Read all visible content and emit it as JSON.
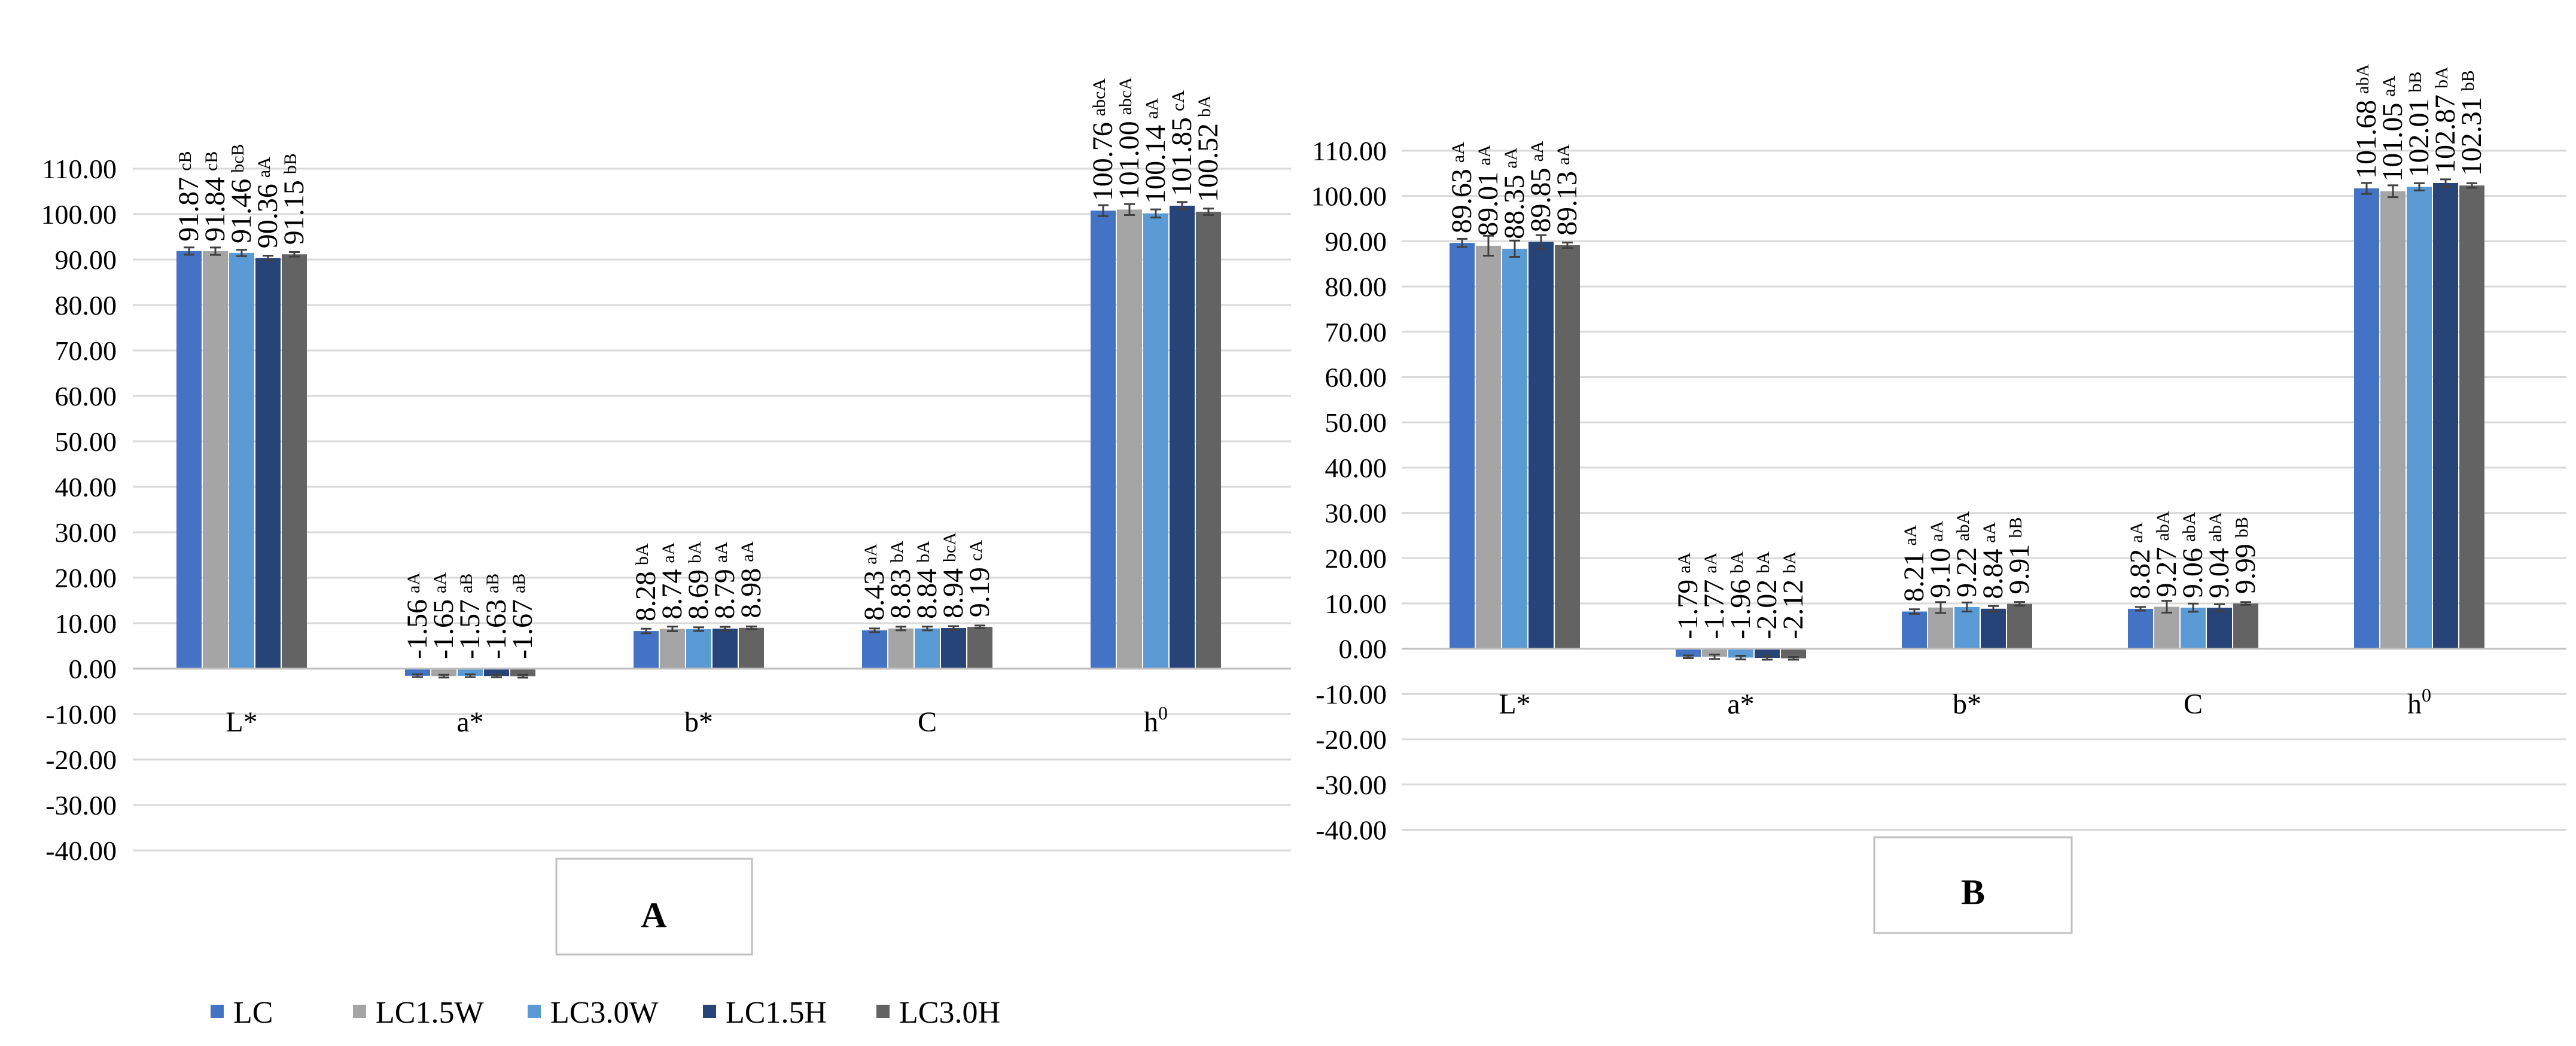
{
  "colors": {
    "LC": "#4472c4",
    "LC1.5W": "#a5a5a5",
    "LC3.0W": "#5b9bd5",
    "LC1.5H": "#264478",
    "LC3.0H": "#636363",
    "grid": "#d9d9d9",
    "axis": "#bfbfbf",
    "text": "#000000"
  },
  "legend": {
    "position": "bottom-left",
    "items": [
      "LC",
      "LC1.5W",
      "LC3.0W",
      "LC1.5H",
      "LC3.0H"
    ]
  },
  "chart_data": [
    {
      "type": "bar",
      "panel_label": "A",
      "categories": [
        "L*",
        "a*",
        "b*",
        "C",
        "h0"
      ],
      "category_display": [
        {
          "main": "L*",
          "sup": ""
        },
        {
          "main": "a*",
          "sup": ""
        },
        {
          "main": "b*",
          "sup": ""
        },
        {
          "main": "C",
          "sup": ""
        },
        {
          "main": "h",
          "sup": "0"
        }
      ],
      "ylim": [
        -40,
        110
      ],
      "yticks": [
        -40,
        -30,
        -20,
        -10,
        0,
        10,
        20,
        30,
        40,
        50,
        60,
        70,
        80,
        90,
        100,
        110
      ],
      "ytick_labels": [
        "-40.00",
        "-30.00",
        "-20.00",
        "-10.00",
        "0.00",
        "10.00",
        "20.00",
        "30.00",
        "40.00",
        "50.00",
        "60.00",
        "70.00",
        "80.00",
        "90.00",
        "100.00",
        "110.00"
      ],
      "grid": true,
      "error_bars": true,
      "series": [
        {
          "name": "LC",
          "values": [
            91.87,
            -1.56,
            8.28,
            8.43,
            100.76
          ],
          "labels": [
            "91.87",
            "-1.56",
            "8.28",
            "8.43",
            "100.76"
          ],
          "letters": [
            "cB",
            "aA",
            "bA",
            "aA",
            "abcA"
          ],
          "errors": [
            0.8,
            0.3,
            0.5,
            0.4,
            1.2
          ]
        },
        {
          "name": "LC1.5W",
          "values": [
            91.84,
            -1.65,
            8.74,
            8.83,
            101.0
          ],
          "labels": [
            "91.84",
            "-1.65",
            "8.74",
            "8.83",
            "101.00"
          ],
          "letters": [
            "cB",
            "aA",
            "aA",
            "bA",
            "abcA"
          ],
          "errors": [
            0.8,
            0.3,
            0.5,
            0.4,
            1.2
          ]
        },
        {
          "name": "LC3.0W",
          "values": [
            91.46,
            -1.57,
            8.69,
            8.84,
            100.14
          ],
          "labels": [
            "91.46",
            "-1.57",
            "8.69",
            "8.84",
            "100.14"
          ],
          "letters": [
            "bcB",
            "aB",
            "bA",
            "bA",
            "aA"
          ],
          "errors": [
            0.7,
            0.3,
            0.4,
            0.4,
            0.9
          ]
        },
        {
          "name": "LC1.5H",
          "values": [
            90.36,
            -1.63,
            8.79,
            8.94,
            101.85
          ],
          "labels": [
            "90.36",
            "-1.63",
            "8.79",
            "8.94",
            "101.85"
          ],
          "letters": [
            "aA",
            "aB",
            "aA",
            "bcA",
            "cA"
          ],
          "errors": [
            0.5,
            0.3,
            0.4,
            0.4,
            0.8
          ]
        },
        {
          "name": "LC3.0H",
          "values": [
            91.15,
            -1.67,
            8.98,
            9.19,
            100.52
          ],
          "labels": [
            "91.15",
            "-1.67",
            "8.98",
            "9.19",
            "100.52"
          ],
          "letters": [
            "bB",
            "aB",
            "aA",
            "cA",
            "bA"
          ],
          "errors": [
            0.5,
            0.3,
            0.3,
            0.3,
            0.7
          ]
        }
      ]
    },
    {
      "type": "bar",
      "panel_label": "B",
      "categories": [
        "L*",
        "a*",
        "b*",
        "C",
        "h0"
      ],
      "category_display": [
        {
          "main": "L*",
          "sup": ""
        },
        {
          "main": "a*",
          "sup": ""
        },
        {
          "main": "b*",
          "sup": ""
        },
        {
          "main": "C",
          "sup": ""
        },
        {
          "main": "h",
          "sup": "0"
        }
      ],
      "ylim": [
        -40,
        110
      ],
      "yticks": [
        -40,
        -30,
        -20,
        -10,
        0,
        10,
        20,
        30,
        40,
        50,
        60,
        70,
        80,
        90,
        100,
        110
      ],
      "ytick_labels": [
        "-40.00",
        "-30.00",
        "-20.00",
        "-10.00",
        "0.00",
        "10.00",
        "20.00",
        "30.00",
        "40.00",
        "50.00",
        "60.00",
        "70.00",
        "80.00",
        "90.00",
        "100.00",
        "110.00"
      ],
      "grid": true,
      "error_bars": true,
      "series": [
        {
          "name": "LC",
          "values": [
            89.63,
            -1.79,
            8.21,
            8.82,
            101.68
          ],
          "labels": [
            "89.63",
            "-1.79",
            "8.21",
            "8.82",
            "101.68"
          ],
          "letters": [
            "aA",
            "aA",
            "aA",
            "aA",
            "abA"
          ],
          "errors": [
            0.9,
            0.3,
            0.5,
            0.4,
            1.2
          ]
        },
        {
          "name": "LC1.5W",
          "values": [
            89.01,
            -1.77,
            9.1,
            9.27,
            101.05
          ],
          "labels": [
            "89.01",
            "-1.77",
            "9.10",
            "9.27",
            "101.05"
          ],
          "letters": [
            "aA",
            "aA",
            "aA",
            "abA",
            "aA"
          ],
          "errors": [
            2.2,
            0.5,
            1.2,
            1.3,
            1.3
          ]
        },
        {
          "name": "LC3.0W",
          "values": [
            88.35,
            -1.96,
            9.22,
            9.06,
            102.01
          ],
          "labels": [
            "88.35",
            "-1.96",
            "9.22",
            "9.06",
            "102.01"
          ],
          "letters": [
            "aA",
            "bA",
            "abA",
            "abA",
            "bB"
          ],
          "errors": [
            1.8,
            0.4,
            1.0,
            0.9,
            0.8
          ]
        },
        {
          "name": "LC1.5H",
          "values": [
            89.85,
            -2.02,
            8.84,
            9.04,
            102.87
          ],
          "labels": [
            "89.85",
            "-2.02",
            "8.84",
            "9.04",
            "102.87"
          ],
          "letters": [
            "aA",
            "bA",
            "aA",
            "abA",
            "bA"
          ],
          "errors": [
            1.5,
            0.4,
            0.6,
            0.8,
            0.8
          ]
        },
        {
          "name": "LC3.0H",
          "values": [
            89.13,
            -2.12,
            9.91,
            9.99,
            102.31
          ],
          "labels": [
            "89.13",
            "-2.12",
            "9.91",
            "9.99",
            "102.31"
          ],
          "letters": [
            "aA",
            "bA",
            "bB",
            "bB",
            "bB"
          ],
          "errors": [
            0.6,
            0.3,
            0.4,
            0.3,
            0.5
          ]
        }
      ]
    }
  ]
}
